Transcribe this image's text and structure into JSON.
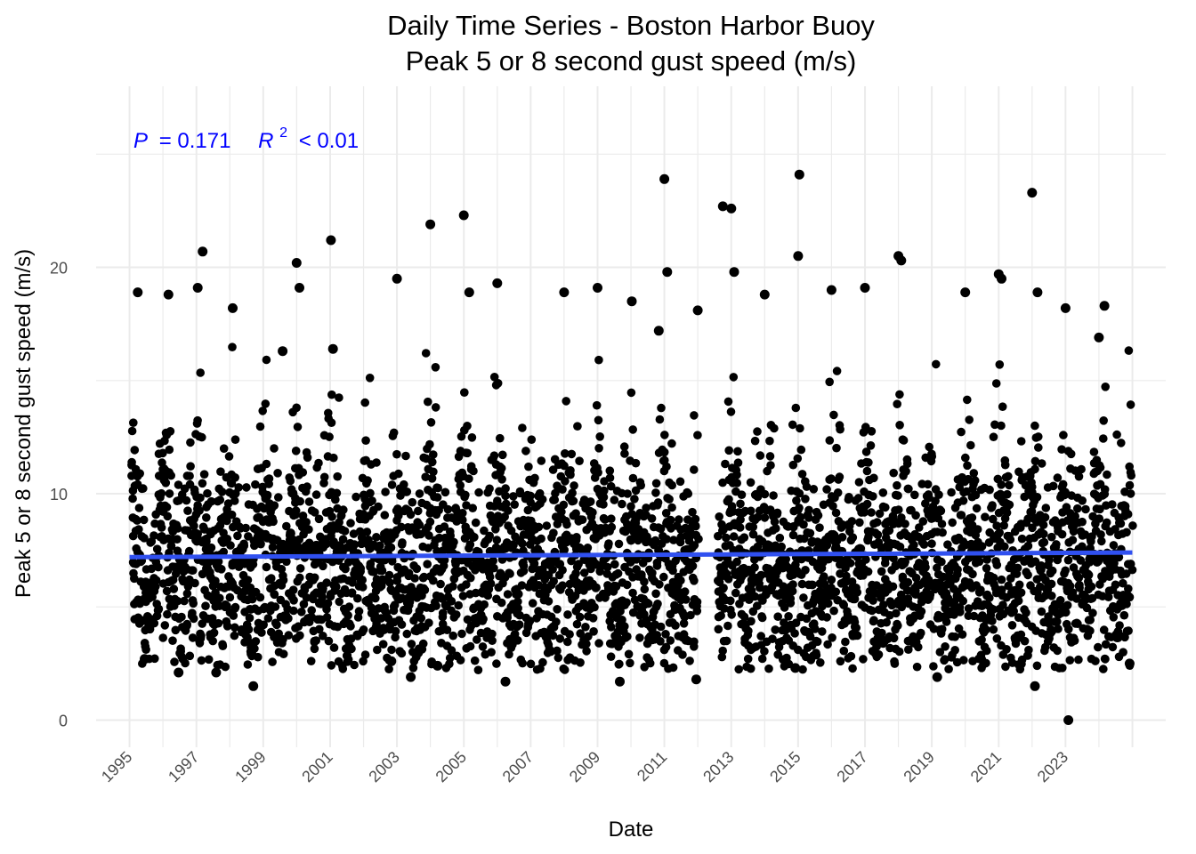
{
  "chart_data": {
    "type": "scatter",
    "title": "Daily Time Series - Boston Harbor Buoy",
    "subtitle": "Peak 5 or 8 second gust speed (m/s)",
    "xlabel": "Date",
    "ylabel": "Peak 5 or 8 second gust speed (m/s)",
    "xlim": [
      "1994-01-01",
      "2025-12-31"
    ],
    "ylim": [
      -1.2,
      28
    ],
    "x_ticks": [
      "1995",
      "1997",
      "1999",
      "2001",
      "2003",
      "2005",
      "2007",
      "2009",
      "2011",
      "2013",
      "2015",
      "2017",
      "2019",
      "2021",
      "2023"
    ],
    "y_ticks": [
      "0",
      "10",
      "20"
    ],
    "grid": true,
    "stat_annotation": {
      "p_label": "P",
      "p_value": "= 0.171",
      "r2_label": "R",
      "r2_superscript": "2",
      "r2_value": "< 0.01"
    },
    "trend_line": {
      "color": "#3050f0",
      "x": [
        "1995-01-01",
        "2024-12-31"
      ],
      "y": [
        7.2,
        7.4
      ]
    },
    "point_color": "#000000",
    "data_gap": [
      "2012-01-01",
      "2012-08-01"
    ],
    "series": [
      {
        "name": "",
        "points_note": "daily observations 1995–2024",
        "x": [
          "1995-04-01",
          "1995-06-15",
          "1996-03-01",
          "1996-06-20",
          "1997-01-15",
          "1997-03-10",
          "1997-08-05",
          "1998-02-01",
          "1998-09-15",
          "1999-08-01",
          "2000-01-01",
          "2000-02-01",
          "2001-01-10",
          "2001-02-01",
          "2002-11-01",
          "2003-01-01",
          "2003-06-01",
          "2004-01-01",
          "2004-03-20",
          "2005-01-01",
          "2005-03-01",
          "2006-01-01",
          "2006-04-01",
          "2008-01-01",
          "2009-01-01",
          "2009-09-01",
          "2010-01-10",
          "2010-11-01",
          "2011-01-01",
          "2011-02-01",
          "2011-12-15",
          "2012-01-01",
          "2012-10-01",
          "2013-01-01",
          "2013-02-01",
          "2014-01-01",
          "2014-12-01",
          "2015-01-01",
          "2015-01-15",
          "2016-01-01",
          "2017-01-01",
          "2018-01-01",
          "2018-02-01",
          "2019-03-01",
          "2020-01-01",
          "2021-01-01",
          "2021-02-01",
          "2022-01-01",
          "2022-02-01",
          "2022-03-01",
          "2023-01-01",
          "2023-02-01",
          "2024-01-01",
          "2024-03-01",
          "2024-12-01"
        ],
        "y": [
          18.9,
          2.7,
          18.8,
          2.1,
          19.1,
          20.7,
          2.1,
          18.2,
          1.5,
          16.3,
          20.2,
          19.1,
          21.2,
          16.4,
          2.6,
          19.5,
          1.9,
          21.9,
          2.4,
          22.3,
          18.9,
          19.3,
          1.7,
          18.9,
          19.1,
          1.7,
          18.5,
          17.2,
          23.9,
          19.8,
          1.8,
          18.1,
          22.7,
          22.6,
          19.8,
          18.8,
          2.3,
          20.5,
          24.1,
          19.0,
          19.1,
          20.5,
          20.3,
          1.9,
          18.9,
          19.7,
          19.5,
          23.3,
          1.5,
          18.9,
          18.2,
          0.0,
          16.9,
          18.3,
          2.5
        ]
      }
    ]
  }
}
